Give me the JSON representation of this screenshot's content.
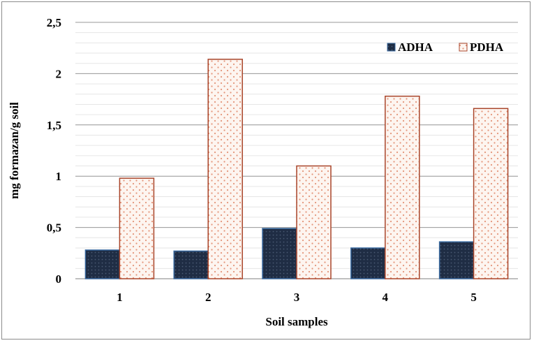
{
  "chart_data": {
    "type": "bar",
    "title": "",
    "xlabel": "Soil samples",
    "ylabel": "mg formazan/g soil",
    "categories": [
      "1",
      "2",
      "3",
      "4",
      "5"
    ],
    "ylim": [
      0,
      2.5
    ],
    "yticks": [
      0,
      0.5,
      1,
      1.5,
      2,
      2.5
    ],
    "ytick_labels": [
      "0",
      "0,5",
      "1",
      "1,5",
      "2",
      "2,5"
    ],
    "grid": true,
    "legend_position": "top-right",
    "series": [
      {
        "name": "ADHA",
        "values": [
          0.28,
          0.27,
          0.49,
          0.3,
          0.36
        ],
        "color": "#1f2d44",
        "edge": "#3a6aa0"
      },
      {
        "name": "PDHA",
        "values": [
          0.98,
          2.14,
          1.1,
          1.78,
          1.66
        ],
        "color": "#fdf5f0",
        "edge": "#a9452a",
        "dots": "#e4957a"
      }
    ]
  }
}
